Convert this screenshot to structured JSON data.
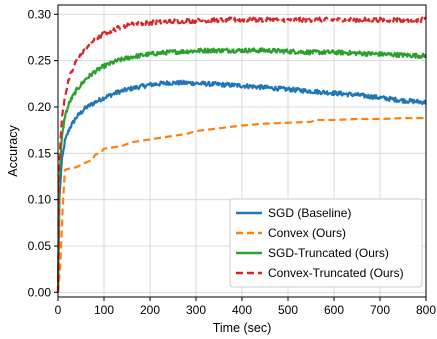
{
  "chart_data": {
    "type": "line",
    "title": "",
    "xlabel": "Time (sec)",
    "ylabel": "Accuracy",
    "xlim": [
      0,
      800
    ],
    "ylim": [
      -0.005,
      0.31
    ],
    "xticks": [
      0,
      100,
      200,
      300,
      400,
      500,
      600,
      700,
      800
    ],
    "xtick_labels": [
      "0",
      "100",
      "200",
      "300",
      "400",
      "500",
      "600",
      "700",
      "800"
    ],
    "yticks": [
      0.0,
      0.05,
      0.1,
      0.15,
      0.2,
      0.25,
      0.3
    ],
    "ytick_labels": [
      "0.00",
      "0.05",
      "0.10",
      "0.15",
      "0.20",
      "0.25",
      "0.30"
    ],
    "grid": true,
    "legend_position": "bottom-right",
    "series": [
      {
        "name": "SGD (Baseline)",
        "color": "#1f77b4",
        "style": "solid",
        "noisy": true,
        "x": [
          0,
          3,
          8,
          15,
          25,
          40,
          60,
          80,
          100,
          130,
          160,
          200,
          240,
          280,
          320,
          360,
          400,
          450,
          500,
          550,
          600,
          650,
          700,
          750,
          800
        ],
        "y": [
          0.0,
          0.1,
          0.14,
          0.163,
          0.177,
          0.189,
          0.199,
          0.205,
          0.21,
          0.216,
          0.22,
          0.224,
          0.226,
          0.226,
          0.225,
          0.224,
          0.223,
          0.221,
          0.219,
          0.217,
          0.215,
          0.213,
          0.21,
          0.207,
          0.205
        ]
      },
      {
        "name": "Convex (Ours)",
        "color": "#ff7f0e",
        "style": "dashed",
        "noisy": false,
        "x": [
          0,
          5,
          10,
          15,
          20,
          40,
          60,
          75,
          80,
          95,
          100,
          140,
          160,
          200,
          240,
          280,
          300,
          350,
          400,
          450,
          500,
          550,
          560,
          600,
          650,
          700,
          750,
          800
        ],
        "y": [
          0.0,
          0.03,
          0.09,
          0.132,
          0.133,
          0.135,
          0.14,
          0.143,
          0.148,
          0.152,
          0.155,
          0.158,
          0.162,
          0.165,
          0.168,
          0.171,
          0.174,
          0.177,
          0.18,
          0.182,
          0.183,
          0.184,
          0.186,
          0.186,
          0.187,
          0.187,
          0.188,
          0.188
        ]
      },
      {
        "name": "SGD-Truncated (Ours)",
        "color": "#2ca02c",
        "style": "solid",
        "noisy": true,
        "x": [
          0,
          3,
          8,
          15,
          25,
          40,
          60,
          80,
          100,
          130,
          160,
          200,
          240,
          280,
          320,
          360,
          400,
          450,
          500,
          550,
          600,
          650,
          700,
          750,
          800
        ],
        "y": [
          0.0,
          0.12,
          0.165,
          0.19,
          0.205,
          0.218,
          0.23,
          0.238,
          0.244,
          0.25,
          0.254,
          0.257,
          0.259,
          0.26,
          0.261,
          0.261,
          0.261,
          0.261,
          0.26,
          0.259,
          0.259,
          0.258,
          0.257,
          0.256,
          0.255
        ]
      },
      {
        "name": "Convex-Truncated (Ours)",
        "color": "#d62728",
        "style": "dashed",
        "noisy": true,
        "x": [
          0,
          3,
          8,
          15,
          25,
          40,
          60,
          80,
          100,
          130,
          160,
          200,
          240,
          280,
          320,
          360,
          400,
          450,
          500,
          550,
          600,
          650,
          700,
          750,
          800
        ],
        "y": [
          0.0,
          0.14,
          0.185,
          0.212,
          0.232,
          0.25,
          0.264,
          0.273,
          0.279,
          0.285,
          0.289,
          0.291,
          0.292,
          0.293,
          0.293,
          0.294,
          0.294,
          0.294,
          0.294,
          0.294,
          0.294,
          0.294,
          0.294,
          0.294,
          0.294
        ]
      }
    ]
  }
}
